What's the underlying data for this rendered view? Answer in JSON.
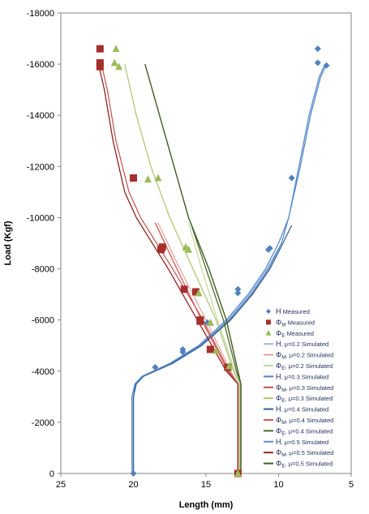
{
  "chart_data": {
    "type": "scatter",
    "title": "",
    "xlabel": "Length (mm)",
    "ylabel": "Load (Kgf)",
    "xlim": [
      25,
      5
    ],
    "ylim": [
      0,
      -18000
    ],
    "x_reversed": true,
    "y_reversed": true,
    "grid": false,
    "legend_position": "bottom-right",
    "x_ticks": [
      "25",
      "20",
      "15",
      "10",
      "5"
    ],
    "x_tick_values": [
      25,
      20,
      15,
      10,
      5
    ],
    "y_ticks": [
      "0",
      "-2000",
      "-4000",
      "-6000",
      "-8000",
      "-10000",
      "-12000",
      "-14000",
      "-16000",
      "-18000"
    ],
    "y_tick_values": [
      0,
      -2000,
      -4000,
      -6000,
      -8000,
      -10000,
      -12000,
      -14000,
      -16000,
      -18000
    ],
    "series": [
      {
        "name": "H Measured",
        "kind": "marker",
        "marker": "diamond",
        "color": "#4f81bd",
        "points": [
          [
            20,
            0
          ],
          [
            16.6,
            -4750
          ],
          [
            16.6,
            -4850
          ],
          [
            18.5,
            -4150
          ],
          [
            14.9,
            -5900
          ],
          [
            12.8,
            -7050
          ],
          [
            12.8,
            -7200
          ],
          [
            10.7,
            -8750
          ],
          [
            10.6,
            -8800
          ],
          [
            9.1,
            -11550
          ],
          [
            7.3,
            -16600
          ],
          [
            7.3,
            -16050
          ],
          [
            6.7,
            -15950
          ]
        ]
      },
      {
        "name": "ΦM Measured",
        "kind": "marker",
        "marker": "square",
        "color": "#a5302c",
        "points": [
          [
            12.8,
            0
          ],
          [
            13.5,
            -4150
          ],
          [
            14.7,
            -4850
          ],
          [
            15.4,
            -5950
          ],
          [
            15.4,
            -6000
          ],
          [
            15.7,
            -7100
          ],
          [
            16.5,
            -7200
          ],
          [
            18.1,
            -8750
          ],
          [
            18.0,
            -8850
          ],
          [
            20.0,
            -11550
          ],
          [
            22.3,
            -16600
          ],
          [
            22.3,
            -16050
          ],
          [
            22.3,
            -15900
          ]
        ]
      },
      {
        "name": "ΦE Measured",
        "kind": "marker",
        "marker": "triangle",
        "color": "#9bbb59",
        "points": [
          [
            12.8,
            0
          ],
          [
            13.4,
            -4200
          ],
          [
            14.3,
            -4800
          ],
          [
            14.7,
            -5900
          ],
          [
            15.5,
            -7050
          ],
          [
            16.2,
            -8750
          ],
          [
            16.4,
            -8850
          ],
          [
            18.3,
            -11550
          ],
          [
            19.0,
            -11500
          ],
          [
            21.2,
            -16600
          ],
          [
            21.3,
            -16050
          ],
          [
            21.0,
            -15900
          ]
        ]
      },
      {
        "name": "H, μ=0.2 Simulated",
        "kind": "line",
        "color": "#9bb8de",
        "width": 1.2,
        "points": [
          [
            20.0,
            0
          ],
          [
            20.0,
            -3000
          ],
          [
            19.85,
            -3500
          ],
          [
            19.4,
            -3800
          ],
          [
            17.5,
            -4300
          ],
          [
            15.5,
            -5000
          ],
          [
            13.5,
            -6000
          ],
          [
            12.0,
            -7000
          ],
          [
            10.8,
            -8000
          ],
          [
            10.0,
            -8800
          ]
        ]
      },
      {
        "name": "ΦM, μ=0.2 Simulated",
        "kind": "line",
        "color": "#e0a49c",
        "width": 1.2,
        "points": [
          [
            12.8,
            0
          ],
          [
            12.8,
            -3500
          ],
          [
            13.3,
            -4000
          ],
          [
            15.0,
            -6000
          ],
          [
            16.8,
            -8000
          ],
          [
            18.3,
            -9800
          ]
        ]
      },
      {
        "name": "ΦE, μ=0.2 Simulated",
        "kind": "line",
        "color": "#c3d69b",
        "width": 1.2,
        "points": [
          [
            12.7,
            0
          ],
          [
            12.7,
            -3500
          ],
          [
            13.0,
            -4000
          ],
          [
            14.2,
            -6000
          ],
          [
            15.3,
            -8000
          ],
          [
            16.2,
            -9800
          ]
        ]
      },
      {
        "name": "H, μ=0.3 Simulated",
        "kind": "line",
        "color": "#4f81bd",
        "width": 1.2,
        "points": [
          [
            20.0,
            0
          ],
          [
            20.0,
            -3000
          ],
          [
            19.85,
            -3500
          ],
          [
            19.35,
            -3800
          ],
          [
            17.4,
            -4300
          ],
          [
            15.4,
            -5000
          ],
          [
            13.4,
            -6000
          ],
          [
            11.9,
            -7000
          ],
          [
            10.7,
            -8000
          ],
          [
            9.8,
            -9000
          ],
          [
            9.3,
            -10000
          ],
          [
            8.5,
            -12000
          ],
          [
            7.8,
            -14000
          ],
          [
            7.1,
            -15500
          ],
          [
            6.7,
            -16000
          ]
        ]
      },
      {
        "name": "ΦM, μ=0.3 Simulated",
        "kind": "line",
        "color": "#c0504d",
        "width": 1.2,
        "points": [
          [
            12.8,
            0
          ],
          [
            12.8,
            -3500
          ],
          [
            13.4,
            -4000
          ],
          [
            15.2,
            -6000
          ],
          [
            17.3,
            -8000
          ],
          [
            19.5,
            -10000
          ],
          [
            20.3,
            -11000
          ],
          [
            21.2,
            -13000
          ],
          [
            21.8,
            -15000
          ],
          [
            22.2,
            -16000
          ]
        ]
      },
      {
        "name": "ΦE, μ=0.3 Simulated",
        "kind": "line",
        "color": "#aac46e",
        "width": 1.2,
        "points": [
          [
            12.7,
            0
          ],
          [
            12.7,
            -3500
          ],
          [
            13.1,
            -4000
          ],
          [
            14.3,
            -6000
          ],
          [
            15.9,
            -8000
          ],
          [
            17.5,
            -10000
          ],
          [
            18.8,
            -12000
          ],
          [
            19.8,
            -14000
          ],
          [
            20.6,
            -16000
          ]
        ]
      },
      {
        "name": "H, μ=0.4 Simulated",
        "kind": "line",
        "color": "#366092",
        "width": 1.3,
        "points": [
          [
            20.0,
            0
          ],
          [
            20.0,
            -3000
          ],
          [
            19.8,
            -3500
          ],
          [
            19.3,
            -3800
          ],
          [
            17.3,
            -4300
          ],
          [
            15.3,
            -5000
          ],
          [
            13.3,
            -6000
          ],
          [
            11.8,
            -7000
          ],
          [
            10.6,
            -8000
          ],
          [
            9.7,
            -9000
          ],
          [
            9.1,
            -9700
          ]
        ]
      },
      {
        "name": "ΦM, μ=0.4 Simulated",
        "kind": "line",
        "color": "#d9534f",
        "width": 1.3,
        "points": [
          [
            12.8,
            0
          ],
          [
            12.8,
            -3500
          ],
          [
            13.5,
            -4000
          ],
          [
            15.3,
            -6000
          ],
          [
            17.0,
            -8000
          ],
          [
            18.5,
            -9800
          ]
        ]
      },
      {
        "name": "ΦE, μ=0.4 Simulated",
        "kind": "line",
        "color": "#4e6b28",
        "width": 1.3,
        "points": [
          [
            12.6,
            0
          ],
          [
            12.6,
            -3500
          ],
          [
            12.9,
            -4000
          ],
          [
            13.8,
            -6000
          ],
          [
            15.0,
            -8000
          ],
          [
            16.0,
            -9700
          ]
        ]
      },
      {
        "name": "H, μ=0.5 Simulated",
        "kind": "line",
        "color": "#5a8fd0",
        "width": 1.3,
        "points": [
          [
            20.1,
            0
          ],
          [
            20.1,
            -3000
          ],
          [
            19.9,
            -3500
          ],
          [
            19.4,
            -3800
          ],
          [
            17.5,
            -4300
          ],
          [
            15.5,
            -5000
          ],
          [
            13.6,
            -6000
          ],
          [
            12.1,
            -7000
          ],
          [
            10.9,
            -8000
          ],
          [
            10.0,
            -9000
          ],
          [
            9.3,
            -10000
          ],
          [
            8.6,
            -12000
          ],
          [
            7.9,
            -14000
          ],
          [
            7.2,
            -15500
          ],
          [
            6.8,
            -16000
          ]
        ]
      },
      {
        "name": "ΦM, μ=0.5 Simulated",
        "kind": "line",
        "color": "#8e2623",
        "width": 1.3,
        "points": [
          [
            12.8,
            0
          ],
          [
            12.8,
            -3500
          ],
          [
            13.6,
            -4000
          ],
          [
            15.6,
            -6000
          ],
          [
            17.6,
            -8000
          ],
          [
            19.8,
            -10000
          ],
          [
            20.6,
            -11000
          ],
          [
            21.4,
            -13000
          ],
          [
            22.0,
            -15000
          ],
          [
            22.4,
            -16000
          ]
        ]
      },
      {
        "name": "ΦE, μ=0.5 Simulated",
        "kind": "line",
        "color": "#3d5e1f",
        "width": 1.4,
        "points": [
          [
            12.6,
            0
          ],
          [
            12.6,
            -3500
          ],
          [
            12.8,
            -4000
          ],
          [
            13.6,
            -6000
          ],
          [
            14.8,
            -8000
          ],
          [
            16.2,
            -10000
          ],
          [
            17.2,
            -12000
          ],
          [
            18.2,
            -14000
          ],
          [
            19.2,
            -16000
          ]
        ]
      }
    ],
    "legend": [
      {
        "symbol": "diamond",
        "color": "#4f81bd",
        "pre": "H",
        "sub": "",
        "text": " Measured"
      },
      {
        "symbol": "square",
        "color": "#a5302c",
        "pre": "Φ",
        "sub": "M",
        "text": " Measured"
      },
      {
        "symbol": "triangle",
        "color": "#9bbb59",
        "pre": "Φ",
        "sub": "E",
        "text": " Measured"
      },
      {
        "symbol": "line",
        "color": "#9bb8de",
        "pre": "H",
        "sub": "",
        "text": ", μ=0.2 Simulated"
      },
      {
        "symbol": "line",
        "color": "#e0a49c",
        "pre": "Φ",
        "sub": "M",
        "text": ", μ=0.2 Simulated"
      },
      {
        "symbol": "line",
        "color": "#c3d69b",
        "pre": "Φ",
        "sub": "E",
        "text": ", μ=0.2 Simulated"
      },
      {
        "symbol": "line",
        "color": "#4f81bd",
        "pre": "H",
        "sub": "",
        "text": ", μ=0.3 Simulated"
      },
      {
        "symbol": "line",
        "color": "#c0504d",
        "pre": "Φ",
        "sub": "M",
        "text": ", μ=0.3 Simulated"
      },
      {
        "symbol": "line",
        "color": "#aac46e",
        "pre": "Φ",
        "sub": "E",
        "text": ", μ=0.3 Simulated"
      },
      {
        "symbol": "line",
        "color": "#366092",
        "pre": "H",
        "sub": "",
        "text": ", μ=0.4 Simulated"
      },
      {
        "symbol": "line",
        "color": "#d9534f",
        "pre": "Φ",
        "sub": "M",
        "text": ", μ=0.4 Simulated"
      },
      {
        "symbol": "line",
        "color": "#4e6b28",
        "pre": "Φ",
        "sub": "E",
        "text": ", μ=0.4 Simulated"
      },
      {
        "symbol": "line",
        "color": "#5a8fd0",
        "pre": "H",
        "sub": "",
        "text": ", μ=0.5 Simulated"
      },
      {
        "symbol": "line",
        "color": "#8e2623",
        "pre": "Φ",
        "sub": "M",
        "text": ", μ=0.5 Simulated"
      },
      {
        "symbol": "line",
        "color": "#3d5e1f",
        "pre": "Φ",
        "sub": "E",
        "text": ", μ=0.5 Simulated"
      }
    ]
  }
}
